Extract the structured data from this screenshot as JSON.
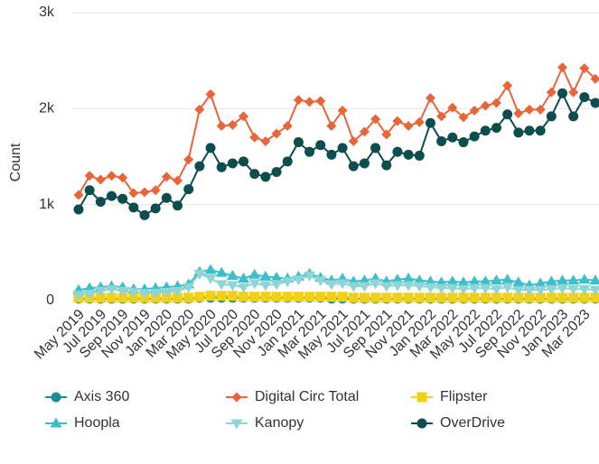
{
  "chart_data": {
    "type": "line",
    "y_label": "Count",
    "categories": [
      "May 2019",
      null,
      "Jul 2019",
      null,
      "Sep 2019",
      null,
      "Nov 2019",
      null,
      "Jan 2020",
      null,
      "Mar 2020",
      null,
      "May 2020",
      null,
      "Jul 2020",
      null,
      "Sep 2020",
      null,
      "Nov 2020",
      null,
      "Jan 2021",
      null,
      "Mar 2021",
      null,
      "May 2021",
      null,
      "Jul 2021",
      null,
      "Sep 2021",
      null,
      "Nov 2021",
      null,
      "Jan 2022",
      null,
      "Mar 2022",
      null,
      "May 2022",
      null,
      "Jul 2022",
      null,
      "Sep 2022",
      null,
      "Nov 2022",
      null,
      "Jan 2023",
      null,
      "Mar 2023",
      null
    ],
    "ylim": [
      0,
      3000
    ],
    "yticks": [
      0,
      {
        "value": 1000,
        "label": "1k"
      },
      {
        "value": 2000,
        "label": "2k"
      },
      {
        "value": 3000,
        "label": "3k"
      }
    ],
    "grid": true,
    "legend": "bottom",
    "series": [
      {
        "name": "Axis 360",
        "color": "#1e8c93",
        "marker": "circle",
        "values": [
          20,
          20,
          20,
          20,
          20,
          20,
          20,
          20,
          20,
          20,
          20,
          30,
          30,
          30,
          30,
          30,
          30,
          30,
          30,
          30,
          30,
          30,
          30,
          20,
          20,
          20,
          20,
          20,
          20,
          20,
          20,
          20,
          20,
          20,
          20,
          20,
          20,
          20,
          20,
          20,
          20,
          20,
          20,
          20,
          20,
          20,
          20,
          20
        ]
      },
      {
        "name": "Digital Circ Total",
        "color": "#e8653a",
        "marker": "diamond",
        "values": [
          1100,
          1300,
          1260,
          1300,
          1280,
          1120,
          1130,
          1150,
          1290,
          1250,
          1470,
          1990,
          2150,
          1820,
          1830,
          1920,
          1700,
          1660,
          1740,
          1820,
          2090,
          2070,
          2080,
          1820,
          1980,
          1660,
          1760,
          1890,
          1730,
          1870,
          1820,
          1860,
          2110,
          1920,
          2010,
          1910,
          1980,
          2030,
          2060,
          2240,
          1950,
          1990,
          1990,
          2170,
          2430,
          2170,
          2420,
          2310
        ]
      },
      {
        "name": "Flipster",
        "color": "#f2d012",
        "marker": "square",
        "values": [
          30,
          30,
          30,
          30,
          30,
          30,
          30,
          30,
          30,
          30,
          30,
          40,
          50,
          50,
          50,
          40,
          40,
          40,
          40,
          40,
          40,
          40,
          40,
          40,
          40,
          30,
          30,
          30,
          30,
          30,
          30,
          30,
          30,
          30,
          30,
          30,
          30,
          30,
          30,
          30,
          30,
          30,
          30,
          30,
          30,
          30,
          30,
          30
        ]
      },
      {
        "name": "Hoopla",
        "color": "#3bbfca",
        "marker": "triangle-up",
        "values": [
          110,
          130,
          140,
          150,
          140,
          120,
          120,
          130,
          140,
          150,
          170,
          300,
          320,
          290,
          260,
          230,
          270,
          250,
          240,
          230,
          250,
          280,
          240,
          210,
          230,
          200,
          210,
          230,
          200,
          220,
          230,
          210,
          200,
          190,
          200,
          190,
          200,
          200,
          210,
          220,
          190,
          160,
          180,
          200,
          210,
          210,
          220,
          210
        ]
      },
      {
        "name": "Kanopy",
        "color": "#8fd4d6",
        "marker": "triangle-down",
        "values": [
          60,
          70,
          100,
          120,
          100,
          90,
          80,
          80,
          90,
          100,
          140,
          280,
          230,
          170,
          160,
          140,
          180,
          160,
          170,
          200,
          220,
          260,
          210,
          170,
          180,
          150,
          150,
          180,
          150,
          160,
          160,
          150,
          140,
          130,
          130,
          120,
          130,
          130,
          120,
          140,
          110,
          110,
          110,
          120,
          130,
          120,
          120,
          110
        ]
      },
      {
        "name": "OverDrive",
        "color": "#0d4d4d",
        "marker": "circle",
        "values": [
          950,
          1150,
          1030,
          1090,
          1060,
          970,
          890,
          960,
          1070,
          990,
          1160,
          1400,
          1590,
          1390,
          1430,
          1450,
          1320,
          1290,
          1340,
          1450,
          1650,
          1550,
          1620,
          1520,
          1590,
          1400,
          1430,
          1590,
          1410,
          1550,
          1520,
          1510,
          1850,
          1660,
          1700,
          1650,
          1710,
          1770,
          1800,
          1940,
          1750,
          1770,
          1770,
          1920,
          2160,
          1920,
          2120,
          2060
        ]
      }
    ]
  }
}
